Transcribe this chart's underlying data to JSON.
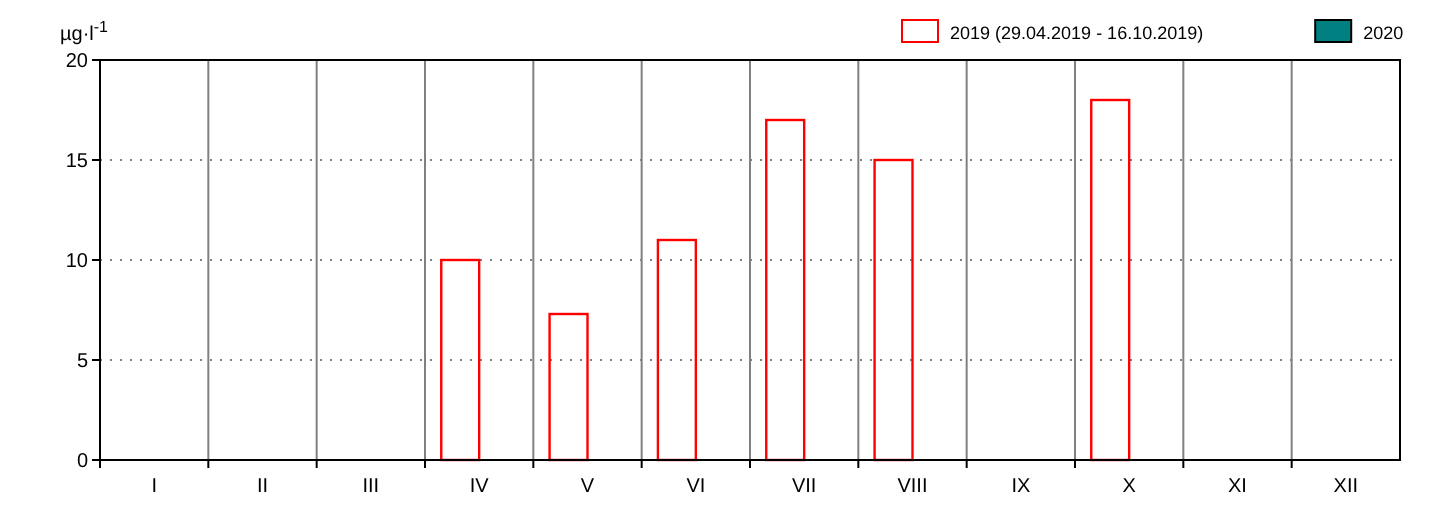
{
  "chart_data": {
    "type": "bar",
    "ylabel": "µg·l$^{-1}$",
    "categories": [
      "I",
      "II",
      "III",
      "IV",
      "V",
      "VI",
      "VII",
      "VIII",
      "IX",
      "X",
      "XI",
      "XII"
    ],
    "series": [
      {
        "name": "2019  (29.04.2019 - 16.10.2019)",
        "color": "#ff0000",
        "values": [
          null,
          null,
          null,
          10,
          7.3,
          11,
          17,
          15,
          null,
          18,
          null,
          null
        ]
      },
      {
        "name": "2020",
        "color": "#008080",
        "values": [
          null,
          null,
          null,
          null,
          null,
          null,
          null,
          null,
          null,
          null,
          null,
          null
        ]
      }
    ],
    "ylim": [
      0,
      20
    ],
    "yticks": [
      0,
      5,
      10,
      15,
      20
    ],
    "grid": "y",
    "legend": "top right"
  }
}
